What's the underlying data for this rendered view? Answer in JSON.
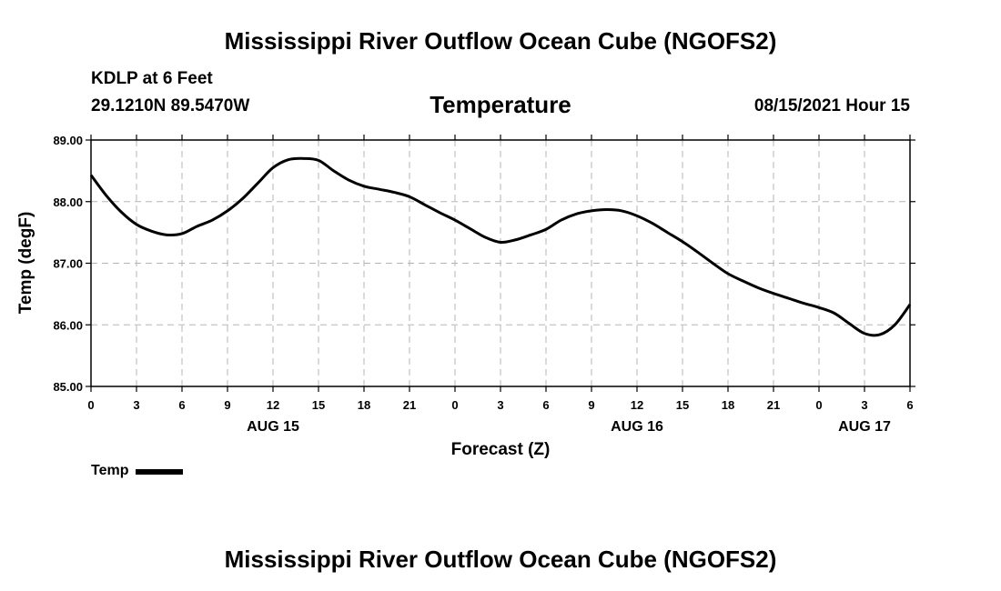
{
  "header": {
    "title": "Mississippi River Outflow Ocean Cube (NGOFS2)",
    "station": "KDLP at 6 Feet",
    "coords": "29.1210N  89.5470W",
    "variable": "Temperature",
    "datetime": "08/15/2021 Hour 15"
  },
  "footer": {
    "title": "Mississippi River Outflow Ocean Cube (NGOFS2)"
  },
  "legend": {
    "label": "Temp",
    "color": "#000000"
  },
  "chart_data": {
    "type": "line",
    "title": "Temperature",
    "xlabel": "Forecast (Z)",
    "ylabel": "Temp (degF)",
    "xlim": [
      0,
      54
    ],
    "ylim": [
      85.0,
      89.0
    ],
    "grid": true,
    "y_ticks": [
      "85.00",
      "86.00",
      "87.00",
      "88.00",
      "89.00"
    ],
    "x_ticks": [
      "0",
      "3",
      "6",
      "9",
      "12",
      "15",
      "18",
      "21",
      "0",
      "3",
      "6",
      "9",
      "12",
      "15",
      "18",
      "21",
      "0",
      "3",
      "6"
    ],
    "date_labels": [
      {
        "label": "AUG 15",
        "at_hour": 12
      },
      {
        "label": "AUG 16",
        "at_hour": 36
      },
      {
        "label": "AUG 17",
        "at_hour": 51
      }
    ],
    "series": [
      {
        "name": "Temp",
        "x": [
          0,
          1,
          2,
          3,
          4,
          5,
          6,
          7,
          8,
          9,
          10,
          11,
          12,
          13,
          14,
          15,
          16,
          17,
          18,
          19,
          20,
          21,
          22,
          23,
          24,
          25,
          26,
          27,
          28,
          29,
          30,
          31,
          32,
          33,
          34,
          35,
          36,
          37,
          38,
          39,
          40,
          41,
          42,
          43,
          44,
          45,
          46,
          47,
          48,
          49,
          50,
          51,
          52,
          53,
          54
        ],
        "values": [
          88.43,
          88.1,
          87.83,
          87.63,
          87.52,
          87.46,
          87.48,
          87.6,
          87.7,
          87.85,
          88.05,
          88.3,
          88.55,
          88.68,
          88.7,
          88.67,
          88.5,
          88.35,
          88.25,
          88.2,
          88.15,
          88.08,
          87.95,
          87.82,
          87.7,
          87.56,
          87.42,
          87.34,
          87.38,
          87.46,
          87.55,
          87.7,
          87.8,
          87.85,
          87.87,
          87.85,
          87.77,
          87.65,
          87.5,
          87.35,
          87.18,
          87.0,
          86.83,
          86.71,
          86.6,
          86.51,
          86.43,
          86.35,
          86.28,
          86.19,
          86.02,
          85.86,
          85.84,
          86.0,
          86.33
        ]
      }
    ]
  }
}
